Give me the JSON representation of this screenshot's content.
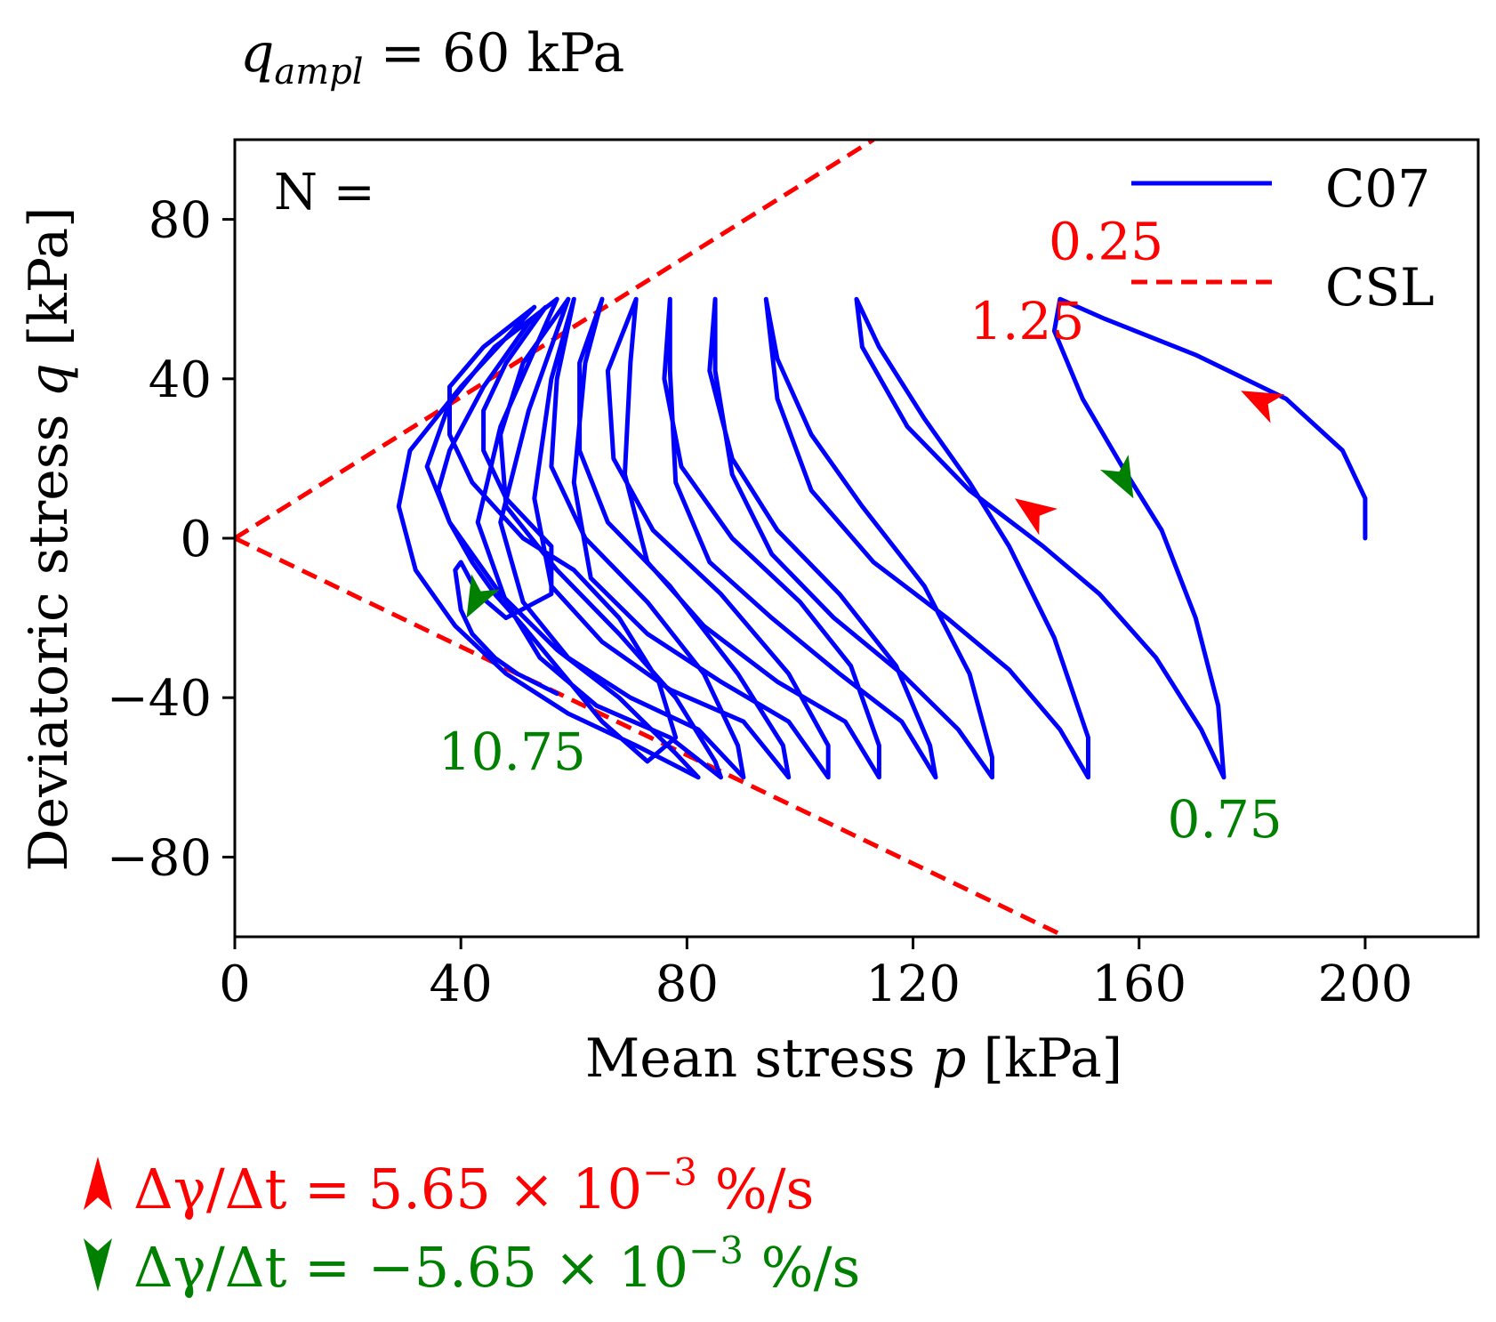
{
  "colors": {
    "c07": "#0000ff",
    "csl": "#ff0000",
    "loading": "#ff0000",
    "unloading": "#008000",
    "axis": "#000000"
  },
  "chart_data": {
    "type": "line",
    "title": "q_ampl = 60 kPa",
    "title_parts": {
      "q": "q",
      "sub": "ampl",
      "rest": " = 60 kPa"
    },
    "xlabel": {
      "prefix": "Mean stress ",
      "var": "p",
      "suffix": " [kPa]"
    },
    "ylabel": {
      "prefix": "Deviatoric stress ",
      "var": "q",
      "suffix": " [kPa]"
    },
    "xlim": [
      0,
      220
    ],
    "ylim": [
      -100,
      100
    ],
    "xticks": [
      0,
      40,
      80,
      120,
      160,
      200
    ],
    "yticks": [
      80,
      40,
      0,
      -40,
      -80
    ],
    "legend": {
      "placement": "top-right",
      "entries": [
        "C07",
        "CSL"
      ]
    },
    "n_label": "N =",
    "cycle_labels": [
      {
        "text": "0.25",
        "color": "red",
        "at": [
          144,
          70
        ]
      },
      {
        "text": "1.25",
        "color": "red",
        "at": [
          130,
          50
        ]
      },
      {
        "text": "0.75",
        "color": "green",
        "at": [
          165,
          -75
        ]
      },
      {
        "text": "10.75",
        "color": "green",
        "at": [
          36,
          -58
        ]
      }
    ],
    "rate_legend": [
      {
        "text": "Δγ/Δt = 5.65 × 10",
        "exp": "−3",
        "unit": " %/s",
        "color": "red",
        "arrow": "up"
      },
      {
        "text": "Δγ/Δt = −5.65 × 10",
        "exp": "−3",
        "unit": " %/s",
        "color": "green",
        "arrow": "down"
      }
    ],
    "series": [
      {
        "name": "CSL",
        "style": "dashed",
        "segments": [
          [
            [
              0,
              0
            ],
            [
              113,
              100
            ]
          ],
          [
            [
              0,
              0
            ],
            [
              147,
              -100
            ]
          ]
        ]
      },
      {
        "name": "C07",
        "style": "solid",
        "points": [
          [
            200,
            0
          ],
          [
            200,
            10
          ],
          [
            196,
            22
          ],
          [
            186,
            35
          ],
          [
            170,
            46
          ],
          [
            154,
            55
          ],
          [
            146,
            60
          ],
          [
            145,
            52
          ],
          [
            150,
            35
          ],
          [
            157,
            18
          ],
          [
            164,
            2
          ],
          [
            170,
            -20
          ],
          [
            174,
            -42
          ],
          [
            175,
            -60
          ],
          [
            171,
            -48
          ],
          [
            163,
            -30
          ],
          [
            153,
            -14
          ],
          [
            143,
            -2
          ],
          [
            130,
            12
          ],
          [
            119,
            28
          ],
          [
            111,
            48
          ],
          [
            110,
            60
          ],
          [
            114,
            48
          ],
          [
            122,
            30
          ],
          [
            130,
            14
          ],
          [
            137,
            -2
          ],
          [
            145,
            -25
          ],
          [
            151,
            -50
          ],
          [
            151,
            -60
          ],
          [
            146,
            -48
          ],
          [
            137,
            -33
          ],
          [
            126,
            -20
          ],
          [
            113,
            -6
          ],
          [
            102,
            12
          ],
          [
            96,
            35
          ],
          [
            94,
            60
          ],
          [
            96,
            45
          ],
          [
            102,
            26
          ],
          [
            111,
            8
          ],
          [
            122,
            -12
          ],
          [
            130,
            -34
          ],
          [
            134,
            -55
          ],
          [
            134,
            -60
          ],
          [
            128,
            -48
          ],
          [
            118,
            -34
          ],
          [
            106,
            -20
          ],
          [
            95,
            -4
          ],
          [
            88,
            16
          ],
          [
            85,
            42
          ],
          [
            85,
            60
          ],
          [
            84,
            42
          ],
          [
            88,
            20
          ],
          [
            96,
            2
          ],
          [
            107,
            -14
          ],
          [
            117,
            -32
          ],
          [
            123,
            -52
          ],
          [
            124,
            -60
          ],
          [
            118,
            -46
          ],
          [
            107,
            -34
          ],
          [
            95,
            -20
          ],
          [
            84,
            -6
          ],
          [
            78,
            14
          ],
          [
            77,
            42
          ],
          [
            77,
            60
          ],
          [
            76,
            40
          ],
          [
            79,
            18
          ],
          [
            88,
            0
          ],
          [
            100,
            -16
          ],
          [
            109,
            -32
          ],
          [
            114,
            -52
          ],
          [
            114,
            -60
          ],
          [
            108,
            -46
          ],
          [
            96,
            -36
          ],
          [
            83,
            -22
          ],
          [
            73,
            -6
          ],
          [
            69,
            16
          ],
          [
            70,
            44
          ],
          [
            71,
            60
          ],
          [
            66,
            42
          ],
          [
            67,
            20
          ],
          [
            74,
            2
          ],
          [
            86,
            -14
          ],
          [
            98,
            -34
          ],
          [
            105,
            -52
          ],
          [
            105,
            -60
          ],
          [
            98,
            -46
          ],
          [
            86,
            -36
          ],
          [
            73,
            -24
          ],
          [
            63,
            -10
          ],
          [
            60,
            14
          ],
          [
            62,
            44
          ],
          [
            65,
            60
          ],
          [
            61,
            44
          ],
          [
            61,
            22
          ],
          [
            66,
            4
          ],
          [
            77,
            -12
          ],
          [
            89,
            -34
          ],
          [
            97,
            -52
          ],
          [
            98,
            -60
          ],
          [
            90,
            -46
          ],
          [
            77,
            -38
          ],
          [
            65,
            -26
          ],
          [
            56,
            -12
          ],
          [
            53,
            10
          ],
          [
            56,
            40
          ],
          [
            60,
            60
          ],
          [
            57,
            40
          ],
          [
            56,
            18
          ],
          [
            62,
            0
          ],
          [
            73,
            -16
          ],
          [
            83,
            -34
          ],
          [
            89,
            -52
          ],
          [
            90,
            -60
          ],
          [
            82,
            -48
          ],
          [
            70,
            -40
          ],
          [
            59,
            -30
          ],
          [
            51,
            -16
          ],
          [
            47,
            4
          ],
          [
            52,
            32
          ],
          [
            59,
            60
          ],
          [
            51,
            44
          ],
          [
            47,
            26
          ],
          [
            48,
            8
          ],
          [
            57,
            -8
          ],
          [
            68,
            -24
          ],
          [
            78,
            -40
          ],
          [
            85,
            -56
          ],
          [
            86,
            -60
          ],
          [
            77,
            -50
          ],
          [
            64,
            -42
          ],
          [
            54,
            -30
          ],
          [
            48,
            -16
          ],
          [
            43,
            4
          ],
          [
            47,
            28
          ],
          [
            57,
            60
          ],
          [
            46,
            48
          ],
          [
            38,
            34
          ],
          [
            34,
            18
          ],
          [
            38,
            4
          ],
          [
            47,
            -14
          ],
          [
            57,
            -28
          ],
          [
            68,
            -40
          ],
          [
            78,
            -54
          ],
          [
            82,
            -60
          ],
          [
            71,
            -52
          ],
          [
            59,
            -44
          ],
          [
            48,
            -34
          ],
          [
            39,
            -22
          ],
          [
            32,
            -8
          ],
          [
            29,
            8
          ],
          [
            31,
            22
          ],
          [
            40,
            38
          ],
          [
            53,
            58
          ],
          [
            44,
            48
          ],
          [
            38,
            38
          ],
          [
            38,
            26
          ],
          [
            42,
            14
          ],
          [
            51,
            0
          ],
          [
            60,
            -8
          ],
          [
            68,
            -20
          ],
          [
            75,
            -36
          ],
          [
            78,
            -50
          ],
          [
            73,
            -56
          ],
          [
            65,
            -46
          ],
          [
            58,
            -34
          ],
          [
            51,
            -22
          ],
          [
            46,
            -14
          ],
          [
            42,
            -6
          ],
          [
            38,
            4
          ],
          [
            36,
            12
          ],
          [
            38,
            22
          ],
          [
            44,
            38
          ],
          [
            52,
            54
          ],
          [
            55,
            58
          ],
          [
            52,
            52
          ],
          [
            48,
            44
          ],
          [
            44,
            32
          ],
          [
            44,
            22
          ],
          [
            48,
            10
          ],
          [
            56,
            -2
          ],
          [
            56,
            -14
          ],
          [
            48,
            -20
          ],
          [
            43,
            -14
          ],
          [
            40,
            -6
          ],
          [
            39,
            -8
          ],
          [
            40,
            -18
          ],
          [
            42,
            -24
          ],
          [
            46,
            -30
          ],
          [
            50,
            -34
          ],
          [
            57,
            -39
          ]
        ]
      }
    ]
  }
}
